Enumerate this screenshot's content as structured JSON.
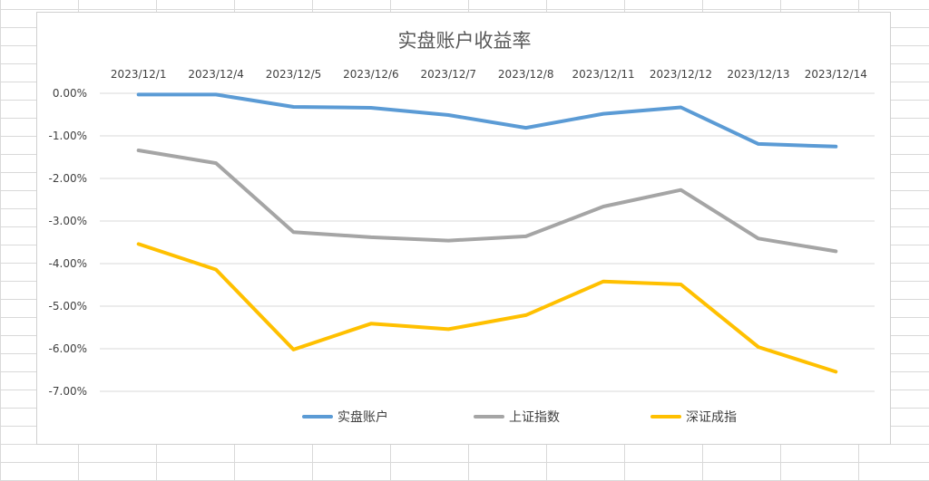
{
  "chart_data": {
    "type": "line",
    "title": "实盘账户收益率",
    "categories": [
      "2023/12/1",
      "2023/12/4",
      "2023/12/5",
      "2023/12/6",
      "2023/12/7",
      "2023/12/8",
      "2023/12/11",
      "2023/12/12",
      "2023/12/13",
      "2023/12/14"
    ],
    "series": [
      {
        "name": "实盘账户",
        "color": "#5b9bd5",
        "values": [
          -0.03,
          -0.03,
          -0.32,
          -0.34,
          -0.51,
          -0.81,
          -0.48,
          -0.33,
          -1.19,
          -1.25
        ]
      },
      {
        "name": "上证指数",
        "color": "#a5a5a5",
        "values": [
          -1.34,
          -1.64,
          -3.26,
          -3.38,
          -3.46,
          -3.36,
          -2.66,
          -2.27,
          -3.41,
          -3.71
        ]
      },
      {
        "name": "深证成指",
        "color": "#ffc000",
        "values": [
          -3.54,
          -4.14,
          -6.02,
          -5.41,
          -5.54,
          -5.21,
          -4.42,
          -4.49,
          -5.96,
          -6.54
        ]
      }
    ],
    "yticks": [
      "0.00%",
      "-1.00%",
      "-2.00%",
      "-3.00%",
      "-4.00%",
      "-5.00%",
      "-6.00%",
      "-7.00%"
    ],
    "ylim": [
      -7,
      0
    ],
    "grid": true,
    "legend_position": "bottom",
    "xaxis_position": "top"
  }
}
